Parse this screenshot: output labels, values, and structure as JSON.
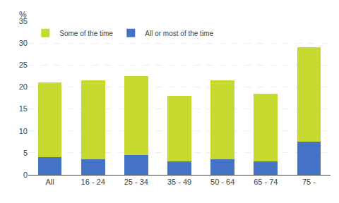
{
  "chart_data": {
    "type": "bar",
    "stacked": true,
    "categories": [
      "All",
      "16 - 24",
      "25 - 34",
      "35 - 49",
      "50 - 64",
      "65 - 74",
      "75 -"
    ],
    "series": [
      {
        "name": "All or most of the time",
        "color": "#4472c4",
        "values": [
          4.0,
          3.5,
          4.5,
          3.0,
          3.5,
          3.0,
          7.5
        ]
      },
      {
        "name": "Some of the time",
        "color": "#c5d92e",
        "values": [
          17.0,
          18.0,
          18.0,
          15.0,
          18.0,
          15.5,
          21.5
        ]
      }
    ],
    "ylabel": "%",
    "ylim": [
      0,
      35
    ],
    "yticks": [
      0,
      5,
      10,
      15,
      20,
      25,
      30,
      35
    ],
    "grid": true,
    "legend": "upper left"
  }
}
